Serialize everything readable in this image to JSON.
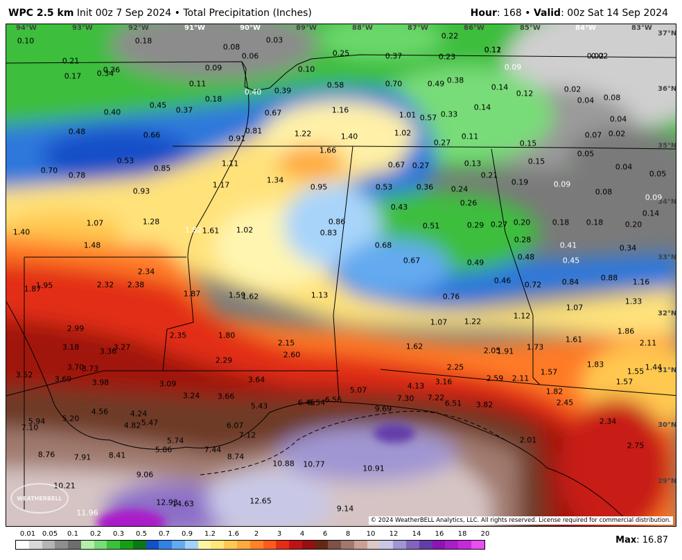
{
  "header": {
    "model": "WPC 2.5 km",
    "init": "Init 00z 7 Sep 2024",
    "bullet": "•",
    "product": "Total Precipitation (Inches)",
    "hour_label": "Hour",
    "hour": ": 168",
    "valid_label": "Valid",
    "valid": ": 00z Sat 14 Sep 2024"
  },
  "lon_ticks": [
    "94°W",
    "93°W",
    "92°W",
    "91°W",
    "90°W",
    "89°W",
    "88°W",
    "87°W",
    "86°W",
    "85°W",
    "84°W",
    "83°W"
  ],
  "lat_ticks": [
    "37°N",
    "36°N",
    "35°N",
    "34°N",
    "33°N",
    "32°N",
    "31°N",
    "30°N",
    "29°N"
  ],
  "values": [
    {
      "v": "0.10"
    },
    {
      "v": "0.18"
    },
    {
      "v": "0.08"
    },
    {
      "v": "0.03"
    },
    {
      "v": "0.06"
    },
    {
      "v": "0.22"
    },
    {
      "v": "0.11"
    },
    {
      "v": "0.02"
    },
    {
      "v": "0.21"
    },
    {
      "v": "0.36"
    },
    {
      "v": "0.17"
    },
    {
      "v": "0.34"
    },
    {
      "v": "0.09"
    },
    {
      "v": "0.10"
    },
    {
      "v": "0.25"
    },
    {
      "v": "0.37"
    },
    {
      "v": "0.23"
    },
    {
      "v": "0.12"
    },
    {
      "v": "0.02"
    },
    {
      "v": "0.09"
    },
    {
      "v": "0.11"
    },
    {
      "v": "0.58"
    },
    {
      "v": "0.70"
    },
    {
      "v": "0.49"
    },
    {
      "v": "0.38"
    },
    {
      "v": "0.14"
    },
    {
      "v": "0.12"
    },
    {
      "v": "0.02"
    },
    {
      "v": "0.40"
    },
    {
      "v": "0.39"
    },
    {
      "v": "0.18"
    },
    {
      "v": "0.04"
    },
    {
      "v": "0.08"
    },
    {
      "v": "0.45"
    },
    {
      "v": "0.37"
    },
    {
      "v": "0.67"
    },
    {
      "v": "1.16"
    },
    {
      "v": "0.14"
    },
    {
      "v": "0.40"
    },
    {
      "v": "1.01"
    },
    {
      "v": "0.33"
    },
    {
      "v": "0.57"
    },
    {
      "v": "0.04"
    },
    {
      "v": "0.48"
    },
    {
      "v": "0.81"
    },
    {
      "v": "1.22"
    },
    {
      "v": "1.02"
    },
    {
      "v": "0.11"
    },
    {
      "v": "0.07"
    },
    {
      "v": "0.02"
    },
    {
      "v": "0.66"
    },
    {
      "v": "0.91"
    },
    {
      "v": "1.40"
    },
    {
      "v": "0.27"
    },
    {
      "v": "0.15"
    },
    {
      "v": "1.66"
    },
    {
      "v": "0.05"
    },
    {
      "v": "0.53"
    },
    {
      "v": "0.85"
    },
    {
      "v": "1.11"
    },
    {
      "v": "0.67"
    },
    {
      "v": "0.27"
    },
    {
      "v": "0.13"
    },
    {
      "v": "0.15"
    },
    {
      "v": "0.04"
    },
    {
      "v": "0.70"
    },
    {
      "v": "0.78"
    },
    {
      "v": "0.21"
    },
    {
      "v": "0.05"
    },
    {
      "v": "1.34"
    },
    {
      "v": "0.95"
    },
    {
      "v": "1.17"
    },
    {
      "v": "0.53"
    },
    {
      "v": "0.36"
    },
    {
      "v": "0.24"
    },
    {
      "v": "0.19"
    },
    {
      "v": "0.09"
    },
    {
      "v": "0.08"
    },
    {
      "v": "0.93"
    },
    {
      "v": "0.09"
    },
    {
      "v": "0.26"
    },
    {
      "v": "0.43"
    },
    {
      "v": "0.14"
    },
    {
      "v": "1.07"
    },
    {
      "v": "1.28"
    },
    {
      "v": "0.86"
    },
    {
      "v": "0.51"
    },
    {
      "v": "0.29"
    },
    {
      "v": "0.27"
    },
    {
      "v": "0.20"
    },
    {
      "v": "0.18"
    },
    {
      "v": "0.18"
    },
    {
      "v": "0.20"
    },
    {
      "v": "1.40"
    },
    {
      "v": "1.82"
    },
    {
      "v": "1.61"
    },
    {
      "v": "1.02"
    },
    {
      "v": "0.83"
    },
    {
      "v": "0.28"
    },
    {
      "v": "0.41"
    },
    {
      "v": "1.48"
    },
    {
      "v": "0.68"
    },
    {
      "v": "0.34"
    },
    {
      "v": "0.48"
    },
    {
      "v": "0.67"
    },
    {
      "v": "0.49"
    },
    {
      "v": "0.45"
    },
    {
      "v": "2.34"
    },
    {
      "v": "0.88"
    },
    {
      "v": "0.46"
    },
    {
      "v": "0.72"
    },
    {
      "v": "0.84"
    },
    {
      "v": "1.16"
    },
    {
      "v": "1.87"
    },
    {
      "v": "1.95"
    },
    {
      "v": "2.32"
    },
    {
      "v": "2.38"
    },
    {
      "v": "1.87"
    },
    {
      "v": "1.59"
    },
    {
      "v": "1.62"
    },
    {
      "v": "1.13"
    },
    {
      "v": "0.76"
    },
    {
      "v": "1.33"
    },
    {
      "v": "1.07"
    },
    {
      "v": "1.12"
    },
    {
      "v": "1.07"
    },
    {
      "v": "1.22"
    },
    {
      "v": "2.99"
    },
    {
      "v": "1.86"
    },
    {
      "v": "2.35"
    },
    {
      "v": "1.80"
    },
    {
      "v": "1.61"
    },
    {
      "v": "3.18"
    },
    {
      "v": "3.27"
    },
    {
      "v": "2.15"
    },
    {
      "v": "1.62"
    },
    {
      "v": "2.11"
    },
    {
      "v": "3.36"
    },
    {
      "v": "2.05"
    },
    {
      "v": "1.91"
    },
    {
      "v": "1.73"
    },
    {
      "v": "2.60"
    },
    {
      "v": "2.29"
    },
    {
      "v": "1.83"
    },
    {
      "v": "3.70"
    },
    {
      "v": "3.73"
    },
    {
      "v": "2.25"
    },
    {
      "v": "1.44"
    },
    {
      "v": "3.52"
    },
    {
      "v": "1.55"
    },
    {
      "v": "3.69"
    },
    {
      "v": "3.98"
    },
    {
      "v": "3.09"
    },
    {
      "v": "3.64"
    },
    {
      "v": "2.59"
    },
    {
      "v": "2.11"
    },
    {
      "v": "1.57"
    },
    {
      "v": "1.57"
    },
    {
      "v": "3.16"
    },
    {
      "v": "4.13"
    },
    {
      "v": "3.24"
    },
    {
      "v": "3.66"
    },
    {
      "v": "5.07"
    },
    {
      "v": "1.82"
    },
    {
      "v": "5.43"
    },
    {
      "v": "6.46"
    },
    {
      "v": "6.54"
    },
    {
      "v": "6.56"
    },
    {
      "v": "7.30"
    },
    {
      "v": "7.22"
    },
    {
      "v": "6.51"
    },
    {
      "v": "3.82"
    },
    {
      "v": "2.45"
    },
    {
      "v": "4.56"
    },
    {
      "v": "4.24"
    },
    {
      "v": "9.69"
    },
    {
      "v": "5.94"
    },
    {
      "v": "5.20"
    },
    {
      "v": "4.82"
    },
    {
      "v": "5.47"
    },
    {
      "v": "6.07"
    },
    {
      "v": "2.34"
    },
    {
      "v": "7.10"
    },
    {
      "v": "7.12"
    },
    {
      "v": "5.74"
    },
    {
      "v": "2.01"
    },
    {
      "v": "5.86"
    },
    {
      "v": "2.75"
    },
    {
      "v": "8.76"
    },
    {
      "v": "7.91"
    },
    {
      "v": "8.41"
    },
    {
      "v": "7.44"
    },
    {
      "v": "8.74"
    },
    {
      "v": "10.88"
    },
    {
      "v": "10.77"
    },
    {
      "v": "9.06"
    },
    {
      "v": "10.91"
    },
    {
      "v": "10.21"
    },
    {
      "v": "12.93"
    },
    {
      "v": "14.63"
    },
    {
      "v": "12.65"
    },
    {
      "v": "9.14"
    },
    {
      "v": "11.96"
    }
  ],
  "copyright": "© 2024 WeatherBELL Analytics, LLC. All rights reserved. License required for commercial distribution.",
  "logo_text": "WEATHERBELL",
  "legend": {
    "ticks": [
      "0.01",
      "0.05",
      "0.1",
      "0.2",
      "0.3",
      "0.5",
      "0.7",
      "0.9",
      "1.2",
      "1.6",
      "2",
      "3",
      "4",
      "6",
      "8",
      "10",
      "12",
      "14",
      "16",
      "18",
      "20"
    ],
    "colors": [
      "#ffffff",
      "#d8d8d8",
      "#b4b4b4",
      "#8e8e8e",
      "#6e6e6e",
      "#b4f0a8",
      "#78dc78",
      "#3cc03c",
      "#14a014",
      "#0a7814",
      "#1450c8",
      "#3282e6",
      "#64aaf0",
      "#a0d2fa",
      "#fff5a0",
      "#ffe678",
      "#ffc850",
      "#ffaa3c",
      "#ff8228",
      "#ff5a1e",
      "#e62d14",
      "#be1414",
      "#961010",
      "#642814",
      "#825046",
      "#a0786e",
      "#c8a096",
      "#dcc8c8",
      "#c8c8e6",
      "#a096d2",
      "#8264be",
      "#643caa",
      "#8c14b4",
      "#aa1ec8",
      "#c828dc",
      "#e650f0"
    ],
    "max_label": "Max",
    "max_value": ": 16.87"
  }
}
